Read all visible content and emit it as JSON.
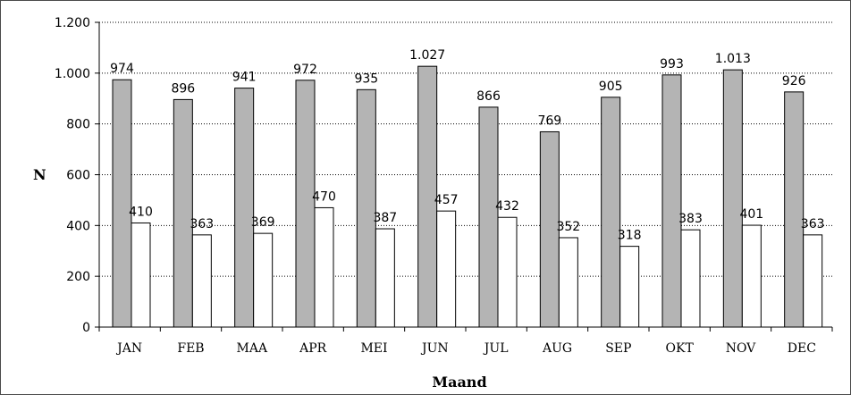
{
  "chart_data": {
    "type": "bar",
    "categories": [
      "JAN",
      "FEB",
      "MAA",
      "APR",
      "MEI",
      "JUN",
      "JUL",
      "AUG",
      "SEP",
      "OKT",
      "NOV",
      "DEC"
    ],
    "series": [
      {
        "values": [
          974,
          896,
          941,
          972,
          935,
          1027,
          866,
          769,
          905,
          993,
          1013,
          926
        ],
        "labels": [
          "974",
          "896",
          "941",
          "972",
          "935",
          "1.027",
          "866",
          "769",
          "905",
          "993",
          "1.013",
          "926"
        ],
        "color": "#b4b4b4"
      },
      {
        "values": [
          410,
          363,
          369,
          470,
          387,
          457,
          432,
          352,
          318,
          383,
          401,
          363
        ],
        "labels": [
          "410",
          "363",
          "369",
          "470",
          "387",
          "457",
          "432",
          "352",
          "318",
          "383",
          "401",
          "363"
        ],
        "color": "#ffffff"
      }
    ],
    "yticks": [
      0,
      200,
      400,
      600,
      800,
      1000,
      1200
    ],
    "ytick_labels": [
      "0",
      "200",
      "400",
      "600",
      "800",
      "1.000",
      "1.200"
    ],
    "ylim": [
      0,
      1200
    ],
    "xlabel": "Maand",
    "ylabel": "N",
    "grid": "horizontal-dotted",
    "legend": "none"
  }
}
